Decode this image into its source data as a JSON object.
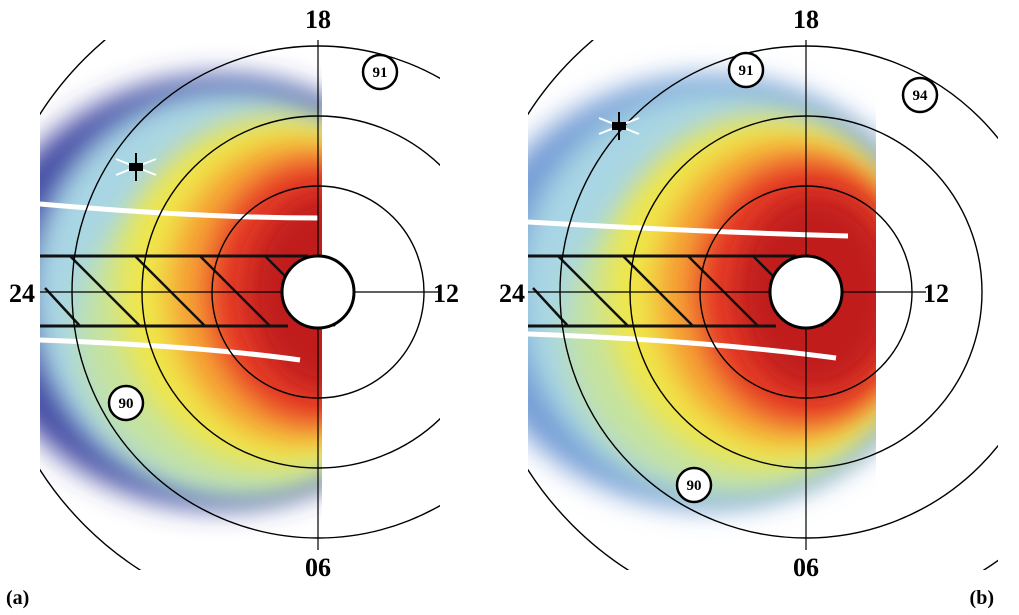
{
  "panels": [
    {
      "label": "(a)",
      "hours": {
        "top": "18",
        "left": "24",
        "right": "12",
        "bottom": "06"
      },
      "markers": [
        "91",
        "90"
      ]
    },
    {
      "label": "(b)",
      "hours": {
        "top": "18",
        "left": "24",
        "right": "12",
        "bottom": "06"
      },
      "markers": [
        "91",
        "94",
        "90"
      ]
    }
  ]
}
